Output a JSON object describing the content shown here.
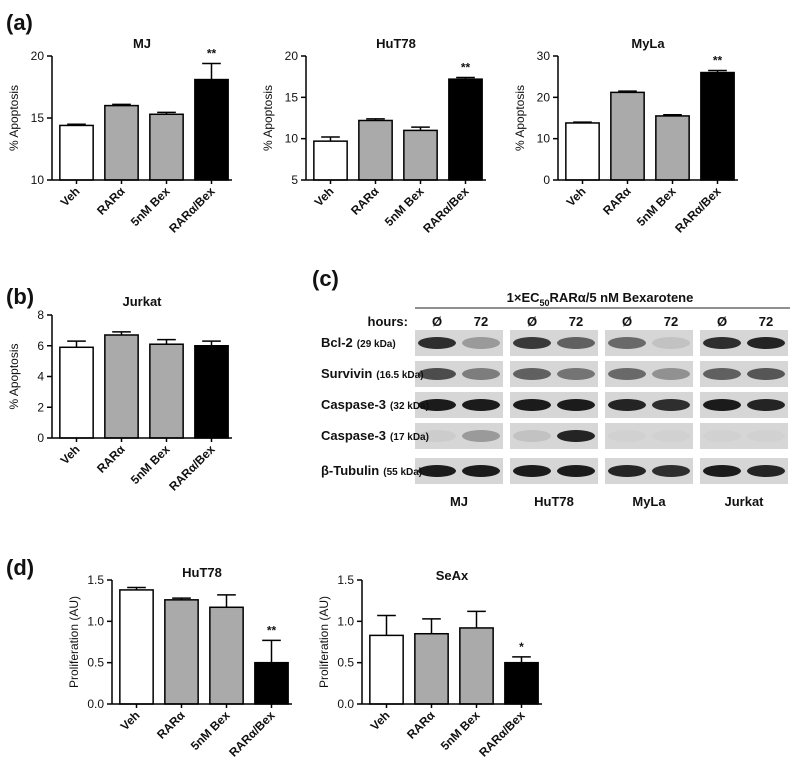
{
  "panels": [
    "(a)",
    "(b)",
    "(c)",
    "(d)"
  ],
  "chart_data": [
    {
      "type": "bar",
      "title": "MJ",
      "ylabel": "% Apoptosis",
      "categories": [
        "Veh",
        "RARα",
        "5nM Bex",
        "RARα/Bex"
      ],
      "values": [
        14.4,
        16.0,
        15.3,
        18.1
      ],
      "errors": [
        0.1,
        0.1,
        0.15,
        1.3
      ],
      "annotations": [
        null,
        null,
        null,
        "**"
      ],
      "colors": [
        "#ffffff",
        "#aaaaaa",
        "#aaaaaa",
        "#000000"
      ],
      "ylim": [
        10,
        20
      ],
      "yticks": [
        10,
        15,
        20
      ]
    },
    {
      "type": "bar",
      "title": "HuT78",
      "ylabel": "% Apoptosis",
      "categories": [
        "Veh",
        "RARα",
        "5nM Bex",
        "RARα/Bex"
      ],
      "values": [
        9.7,
        12.2,
        11.0,
        17.2
      ],
      "errors": [
        0.5,
        0.2,
        0.4,
        0.2
      ],
      "annotations": [
        null,
        null,
        null,
        "**"
      ],
      "colors": [
        "#ffffff",
        "#aaaaaa",
        "#aaaaaa",
        "#000000"
      ],
      "ylim": [
        5,
        20
      ],
      "yticks": [
        5,
        10,
        15,
        20
      ]
    },
    {
      "type": "bar",
      "title": "MyLa",
      "ylabel": "% Apoptosis",
      "categories": [
        "Veh",
        "RARα",
        "5nM Bex",
        "RARα/Bex"
      ],
      "values": [
        13.8,
        21.2,
        15.5,
        26.0
      ],
      "errors": [
        0.2,
        0.3,
        0.3,
        0.5
      ],
      "annotations": [
        null,
        null,
        null,
        "**"
      ],
      "colors": [
        "#ffffff",
        "#aaaaaa",
        "#aaaaaa",
        "#000000"
      ],
      "ylim": [
        0,
        30
      ],
      "yticks": [
        0,
        10,
        20,
        30
      ]
    },
    {
      "type": "bar",
      "title": "Jurkat",
      "ylabel": "% Apoptosis",
      "categories": [
        "Veh",
        "RARα",
        "5nM Bex",
        "RARα/Bex"
      ],
      "values": [
        5.9,
        6.7,
        6.1,
        6.0
      ],
      "errors": [
        0.4,
        0.2,
        0.3,
        0.3
      ],
      "colors": [
        "#ffffff",
        "#aaaaaa",
        "#aaaaaa",
        "#000000"
      ],
      "ylim": [
        0,
        8
      ],
      "yticks": [
        0,
        2,
        4,
        6,
        8
      ]
    },
    {
      "type": "bar",
      "title": "HuT78",
      "ylabel": "Proliferation (AU)",
      "categories": [
        "Veh",
        "RARα",
        "5nM Bex",
        "RARα/Bex"
      ],
      "values": [
        1.38,
        1.26,
        1.17,
        0.5
      ],
      "errors": [
        0.03,
        0.02,
        0.15,
        0.27
      ],
      "annotations": [
        null,
        null,
        null,
        "**"
      ],
      "colors": [
        "#ffffff",
        "#aaaaaa",
        "#aaaaaa",
        "#000000"
      ],
      "ylim": [
        0,
        1.5
      ],
      "yticks": [
        {
          "value": 0,
          "label": "0.0"
        },
        {
          "value": 0.5,
          "label": "0.5"
        },
        {
          "value": 1,
          "label": "1.0"
        },
        {
          "value": 1.5,
          "label": "1.5"
        }
      ]
    },
    {
      "type": "bar",
      "title": "SeAx",
      "ylabel": "Proliferation (AU)",
      "categories": [
        "Veh",
        "RARα",
        "5nM Bex",
        "RARα/Bex"
      ],
      "values": [
        0.83,
        0.85,
        0.92,
        0.5
      ],
      "errors": [
        0.24,
        0.18,
        0.2,
        0.07
      ],
      "annotations": [
        null,
        null,
        null,
        "*"
      ],
      "colors": [
        "#ffffff",
        "#aaaaaa",
        "#aaaaaa",
        "#000000"
      ],
      "ylim": [
        0,
        1.5
      ],
      "yticks": [
        {
          "value": 0,
          "label": "0.0"
        },
        {
          "value": 0.5,
          "label": "0.5"
        },
        {
          "value": 1,
          "label": "1.0"
        },
        {
          "value": 1.5,
          "label": "1.5"
        }
      ]
    }
  ],
  "blot": {
    "title_prefix": "1×EC",
    "title_sub": "50",
    "title_suffix": "RARα/5 nM Bexarotene",
    "hours_label": "hours:",
    "time_labels": [
      "Ø",
      "72"
    ],
    "rows": [
      {
        "name": "Bcl-2",
        "size": "(29 kDa)"
      },
      {
        "name": "Survivin",
        "size": "(16.5 kDa)"
      },
      {
        "name": "Caspase-3",
        "size": "(32 kDa)"
      },
      {
        "name": "Caspase-3",
        "size": "(17 kDa)"
      },
      {
        "name": "β-Tubulin",
        "size": "(55 kDa)"
      }
    ],
    "cell_lines": [
      "MJ",
      "HuT78",
      "MyLa",
      "Jurkat"
    ]
  }
}
